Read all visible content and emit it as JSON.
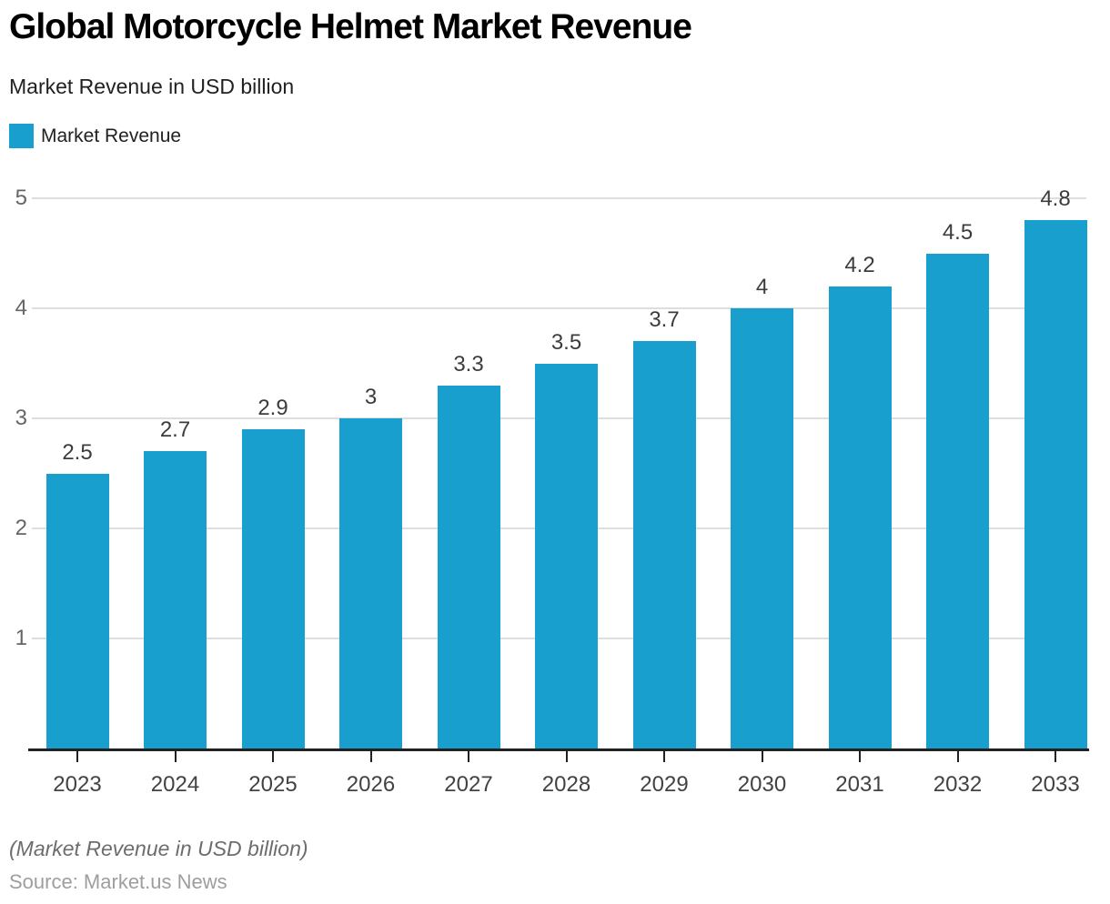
{
  "header": {
    "title": "Global Motorcycle Helmet Market Revenue",
    "subtitle": "Market Revenue in USD billion"
  },
  "legend": {
    "label": "Market Revenue",
    "swatch_icon": "square-swatch-icon"
  },
  "footer": {
    "note": "(Market Revenue in USD billion)",
    "source": "Source: Market.us News"
  },
  "colors": {
    "bar": "#199fce",
    "grid": "#dedede",
    "axis": "#212121",
    "ytick_label": "#666666",
    "xtick_label": "#424242",
    "value_label": "#3c3c3c",
    "note": "#6d6d6d",
    "source": "#9e9e9e"
  },
  "chart_data": {
    "type": "bar",
    "title": "Global Motorcycle Helmet Market Revenue",
    "subtitle": "Market Revenue in USD billion",
    "legend_entries": [
      "Market Revenue"
    ],
    "legend_position": "top-left",
    "categories": [
      "2023",
      "2024",
      "2025",
      "2026",
      "2027",
      "2028",
      "2029",
      "2030",
      "2031",
      "2032",
      "2033"
    ],
    "series": [
      {
        "name": "Market Revenue",
        "values": [
          2.5,
          2.7,
          2.9,
          3,
          3.3,
          3.5,
          3.7,
          4,
          4.2,
          4.5,
          4.8
        ],
        "value_labels": [
          "2.5",
          "2.7",
          "2.9",
          "3",
          "3.3",
          "3.5",
          "3.7",
          "4",
          "4.2",
          "4.5",
          "4.8"
        ],
        "color": "#199fce"
      }
    ],
    "xlabel": "",
    "ylabel": "Market Revenue in USD billion",
    "ylim": [
      0,
      5
    ],
    "yticks": [
      1,
      2,
      3,
      4,
      5
    ],
    "grid": "horizontal",
    "note": "(Market Revenue in USD billion)",
    "source": "Source: Market.us News"
  }
}
